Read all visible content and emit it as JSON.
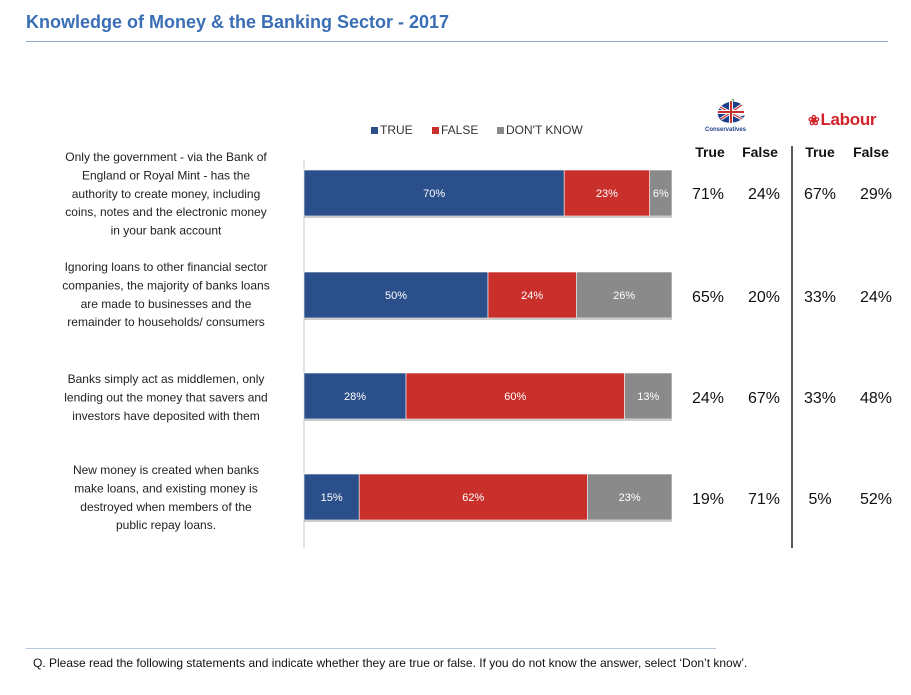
{
  "title": "Knowledge of Money & the Banking Sector - 2017",
  "question": "Q. Please read the following statements and indicate whether they are true or false. If you do not know the answer, select ‘Don’t know’.",
  "parties": {
    "conservatives": {
      "logo_text": "Conservatives",
      "col_true": "True",
      "col_false": "False"
    },
    "labour": {
      "logo_text": "Labour",
      "col_true": "True",
      "col_false": "False"
    }
  },
  "colors": {
    "true": "#2b4f8a",
    "false": "#c9302c",
    "dont_know": "#8a8a8a",
    "title": "#3a6eb5",
    "labour": "#d2232a"
  },
  "chart_data": {
    "type": "bar",
    "orientation": "horizontal",
    "stacked": true,
    "legend_position": "top",
    "categories": [
      [
        "Only the government - via the Bank of",
        "England or Royal Mint - has the",
        "authority to create money, including",
        "coins, notes and the electronic money",
        "in your bank account"
      ],
      [
        "Ignoring loans to other financial sector",
        "companies, the majority of banks loans",
        "are made to businesses and the",
        "remainder to households/ consumers"
      ],
      [
        "Banks simply act as middlemen, only",
        "lending out the money that savers and",
        "investors have deposited with them"
      ],
      [
        "New money is created when banks",
        "make loans, and existing money is",
        "destroyed when members of the",
        "public repay loans."
      ]
    ],
    "series": [
      {
        "name": "TRUE",
        "color": "#2b4f8a",
        "values": [
          70,
          50,
          28,
          15
        ]
      },
      {
        "name": "FALSE",
        "color": "#c9302c",
        "values": [
          23,
          24,
          60,
          62
        ]
      },
      {
        "name": "DON'T KNOW",
        "color": "#8a8a8a",
        "values": [
          6,
          26,
          13,
          23
        ]
      }
    ],
    "party_breakdown": {
      "conservatives": {
        "true": [
          71,
          65,
          24,
          19
        ],
        "false": [
          24,
          20,
          67,
          71
        ]
      },
      "labour": {
        "true": [
          67,
          33,
          33,
          5
        ],
        "false": [
          29,
          24,
          48,
          52
        ]
      }
    }
  }
}
